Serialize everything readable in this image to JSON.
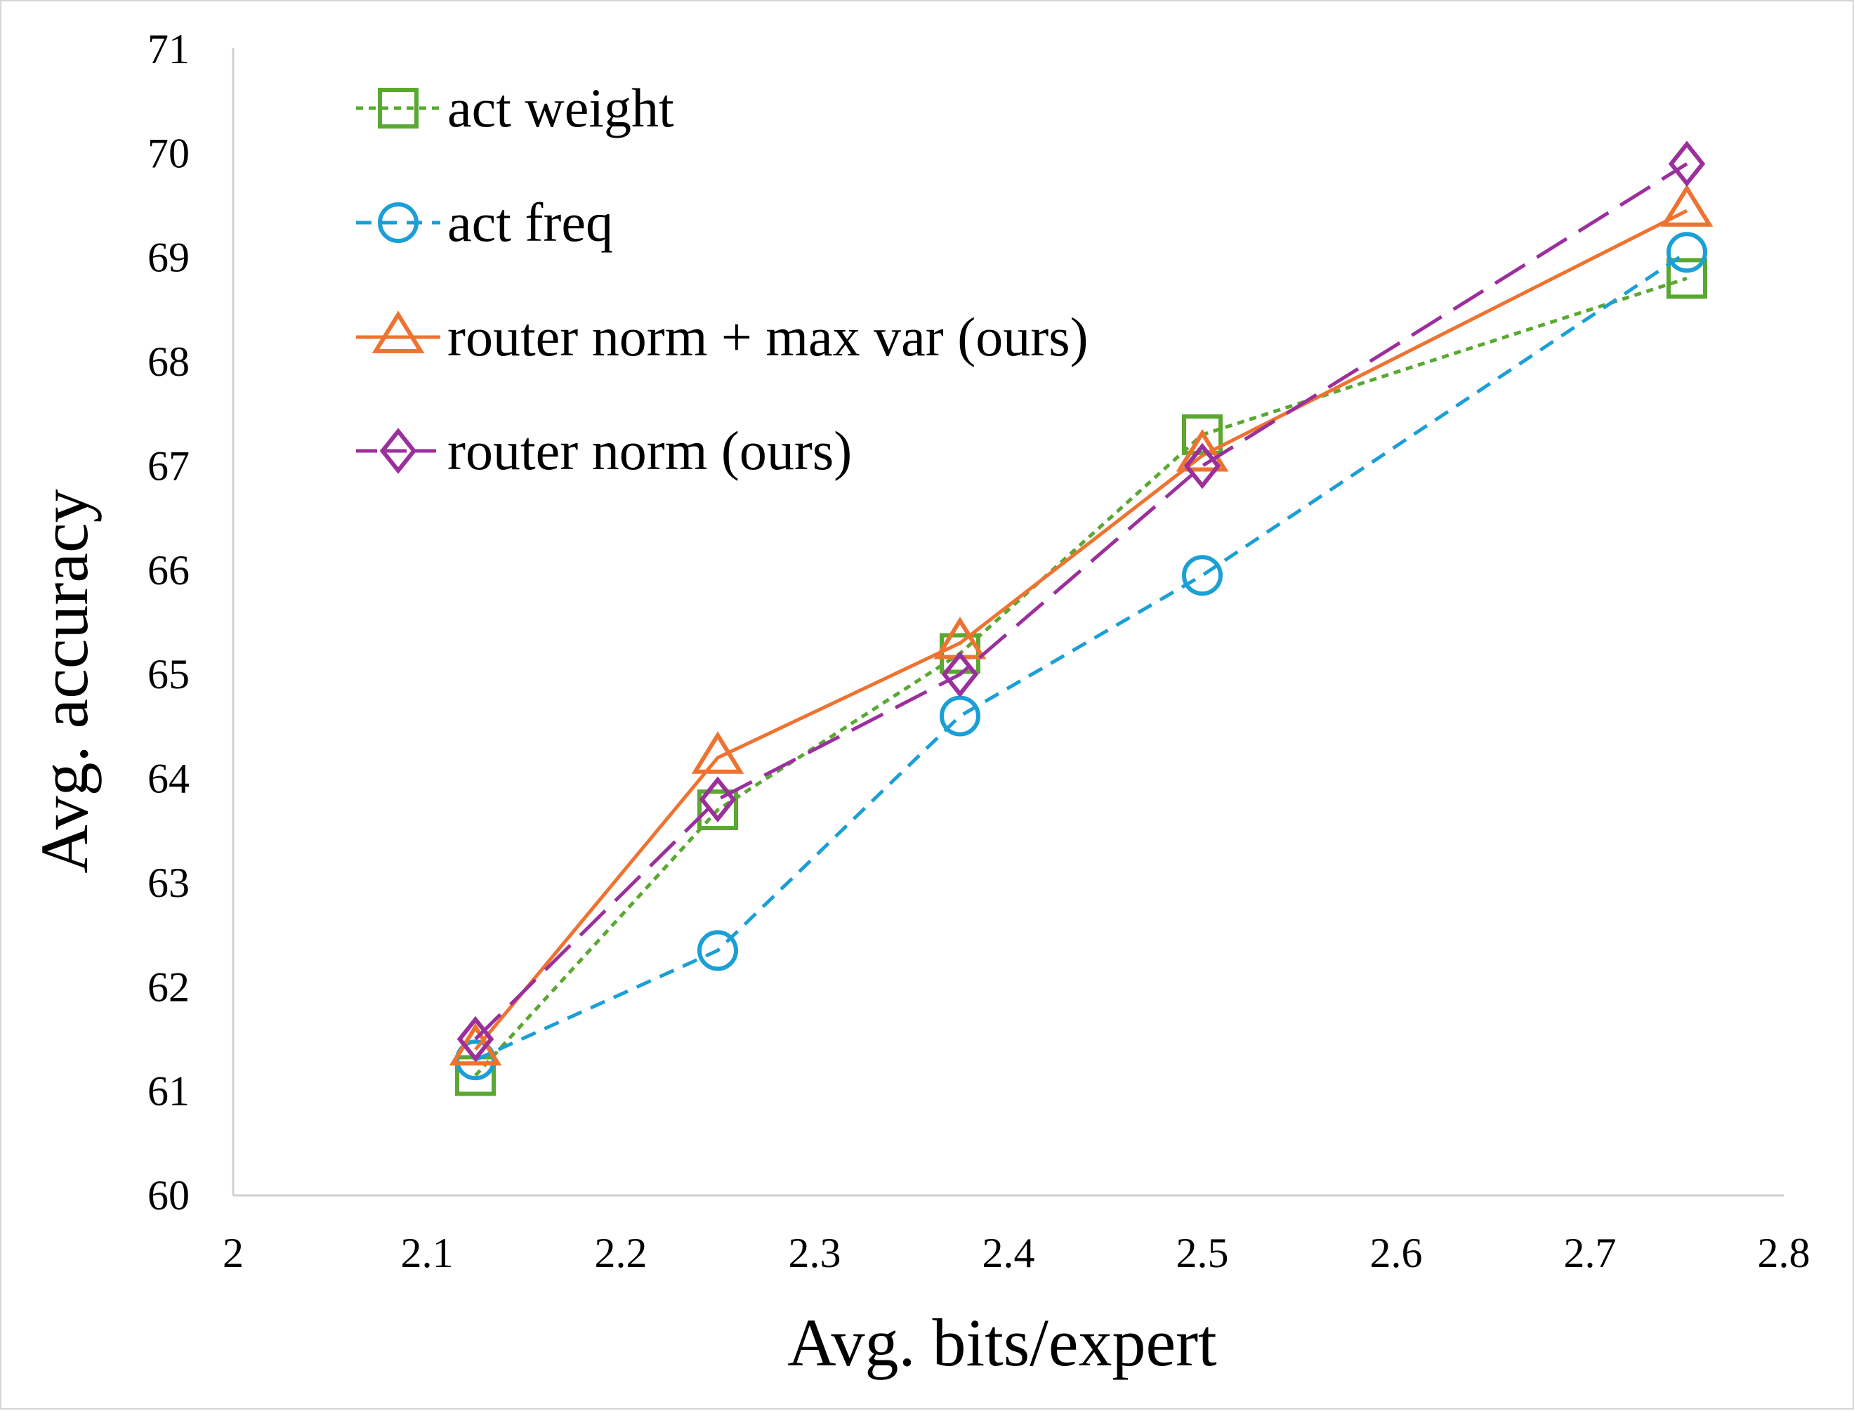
{
  "chart_data": {
    "type": "line",
    "title": "",
    "xlabel": "Avg. bits/expert",
    "ylabel": "Avg. accuracy",
    "xlim": [
      2,
      2.8
    ],
    "ylim": [
      60,
      71
    ],
    "xticks": [
      "2",
      "2.1",
      "2.2",
      "2.3",
      "2.4",
      "2.5",
      "2.6",
      "2.7",
      "2.8"
    ],
    "yticks": [
      "60",
      "61",
      "62",
      "63",
      "64",
      "65",
      "66",
      "67",
      "68",
      "69",
      "70",
      "71"
    ],
    "grid": false,
    "legend_position": "top-left",
    "series": [
      {
        "name": "act weight",
        "color": "#5aa832",
        "marker": "square",
        "line_style": "dotted",
        "x": [
          2.125,
          2.25,
          2.375,
          2.5,
          2.75
        ],
        "y": [
          61.15,
          63.7,
          65.2,
          67.3,
          68.8
        ]
      },
      {
        "name": "act freq",
        "color": "#1a9fd6",
        "marker": "circle",
        "line_style": "dashed",
        "x": [
          2.125,
          2.25,
          2.375,
          2.5,
          2.75
        ],
        "y": [
          61.3,
          62.35,
          64.6,
          65.95,
          69.05
        ]
      },
      {
        "name": "router norm + max var (ours)",
        "color": "#ee7330",
        "marker": "triangle",
        "line_style": "solid",
        "x": [
          2.125,
          2.25,
          2.375,
          2.5,
          2.75
        ],
        "y": [
          61.4,
          64.2,
          65.3,
          67.1,
          69.45
        ]
      },
      {
        "name": "router norm (ours)",
        "color": "#9b2f9c",
        "marker": "diamond",
        "line_style": "longdash",
        "x": [
          2.125,
          2.25,
          2.375,
          2.5,
          2.75
        ],
        "y": [
          61.5,
          63.8,
          65.0,
          67.0,
          69.9
        ]
      }
    ]
  }
}
